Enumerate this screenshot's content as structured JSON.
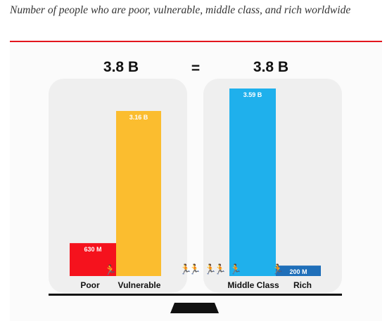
{
  "caption": "Number of people who are poor, vulnerable, middle class, and rich worldwide",
  "chart_data": {
    "type": "bar",
    "title": "",
    "groups": [
      {
        "total_label": "3.8 B",
        "categories": [
          "Poor",
          "Vulnerable"
        ],
        "values": [
          0.63,
          3.16
        ],
        "value_labels": [
          "630 M",
          "3.16 B"
        ],
        "colors": [
          "#f5121d",
          "#fbbd2f"
        ]
      },
      {
        "total_label": "3.8 B",
        "categories": [
          "Middle Class",
          "Rich"
        ],
        "values": [
          3.59,
          0.2
        ],
        "value_labels": [
          "3.59 B",
          "200 M"
        ],
        "colors": [
          "#1fb0ec",
          "#1f6fb9"
        ]
      }
    ],
    "equals_label": "=",
    "unit": "billions of people",
    "ylim": [
      0,
      3.59
    ],
    "grid": false,
    "legend": "none"
  },
  "colors": {
    "rule": "#e3151d",
    "panel": "#efefef",
    "balance_beam": "#111111"
  },
  "icons": [
    "running-person-icon",
    "balance-fulcrum-icon"
  ]
}
